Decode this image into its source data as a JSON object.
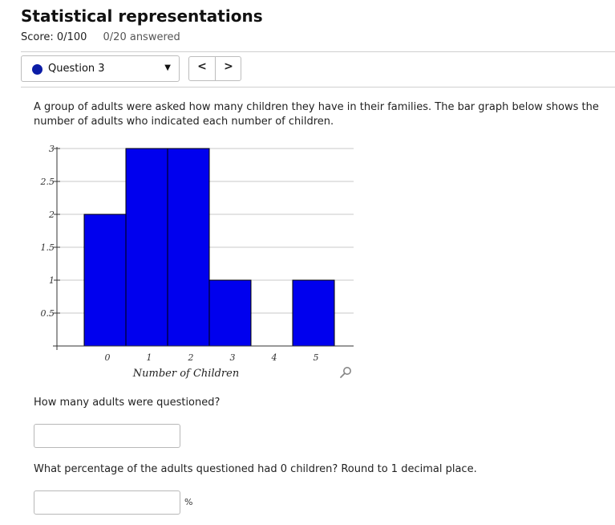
{
  "header": {
    "title": "Statistical representations",
    "score": "Score: 0/100",
    "answered": "0/20 answered"
  },
  "question_nav": {
    "current_label": "Question 3",
    "dot_color": "#0b1ca6",
    "prev_label": "<",
    "next_label": ">"
  },
  "question": {
    "prompt": "A group of adults were asked how many children they have in their families. The bar graph below shows the number of adults who indicated each number of children.",
    "part1": "How many adults were questioned?",
    "part1_value": "",
    "part2": "What percentage of the adults questioned had 0 children? Round to 1 decimal place.",
    "part2_value": "",
    "part2_unit": "%"
  },
  "chart_data": {
    "type": "bar",
    "categories": [
      "0",
      "1",
      "2",
      "3",
      "4",
      "5"
    ],
    "values": [
      2,
      3,
      3,
      1,
      0,
      1
    ],
    "xlabel": "Number of Children",
    "ylabel": "",
    "ylim": [
      0,
      3
    ],
    "yticks": [
      "0.5",
      "1",
      "1.5",
      "2",
      "2.5",
      "3"
    ],
    "bar_color": "#0000ee",
    "grid": true
  }
}
